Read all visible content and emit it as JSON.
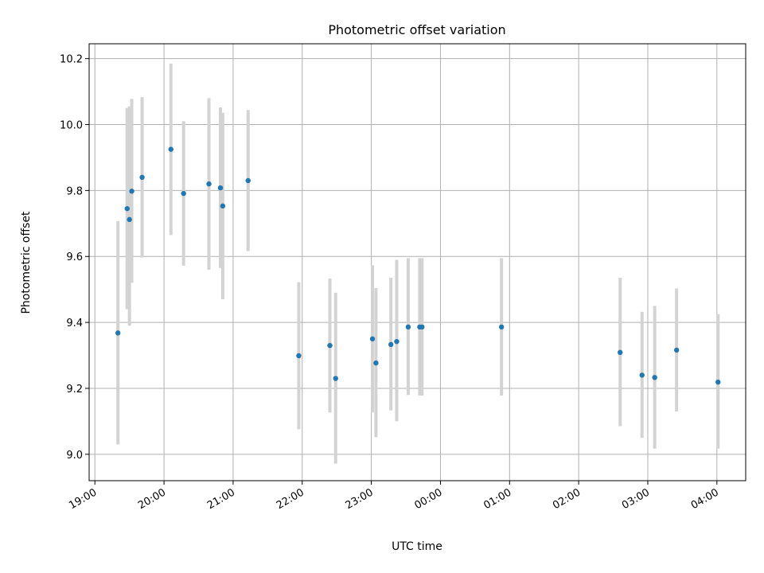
{
  "chart_data": {
    "type": "scatter",
    "title": "Photometric offset variation",
    "xlabel": "UTC time",
    "ylabel": "Photometric offset",
    "x_tick_labels": [
      "19:00",
      "20:00",
      "21:00",
      "22:00",
      "23:00",
      "00:00",
      "01:00",
      "02:00",
      "03:00",
      "04:00"
    ],
    "y_tick_labels": [
      "9.0",
      "9.2",
      "9.4",
      "9.6",
      "9.8",
      "10.0",
      "10.2"
    ],
    "y_ticks": [
      9.0,
      9.2,
      9.4,
      9.6,
      9.8,
      10.0,
      10.2
    ],
    "xlim": [
      "18:55",
      "04:25"
    ],
    "ylim": [
      8.92,
      10.245
    ],
    "grid": true,
    "colors": {
      "points": "#1f77b4",
      "errorbars": "#d3d3d3"
    },
    "points": [
      {
        "x": "19:20",
        "y": 9.368,
        "low": 9.03,
        "high": 9.707
      },
      {
        "x": "19:28",
        "y": 9.745,
        "low": 9.44,
        "high": 10.05
      },
      {
        "x": "19:30",
        "y": 9.712,
        "low": 9.39,
        "high": 10.055
      },
      {
        "x": "19:32",
        "y": 9.798,
        "low": 9.52,
        "high": 10.078
      },
      {
        "x": "19:41",
        "y": 9.84,
        "low": 9.597,
        "high": 10.083
      },
      {
        "x": "20:06",
        "y": 9.925,
        "low": 9.665,
        "high": 10.185
      },
      {
        "x": "20:17",
        "y": 9.791,
        "low": 9.572,
        "high": 10.01
      },
      {
        "x": "20:39",
        "y": 9.82,
        "low": 9.56,
        "high": 10.08
      },
      {
        "x": "20:49",
        "y": 9.808,
        "low": 9.565,
        "high": 10.052
      },
      {
        "x": "20:51",
        "y": 9.753,
        "low": 9.47,
        "high": 10.036
      },
      {
        "x": "21:13",
        "y": 9.83,
        "low": 9.616,
        "high": 10.044
      },
      {
        "x": "21:57",
        "y": 9.299,
        "low": 9.076,
        "high": 9.522
      },
      {
        "x": "22:24",
        "y": 9.33,
        "low": 9.127,
        "high": 9.533
      },
      {
        "x": "22:29",
        "y": 9.23,
        "low": 8.972,
        "high": 9.49
      },
      {
        "x": "23:01",
        "y": 9.35,
        "low": 9.127,
        "high": 9.573
      },
      {
        "x": "23:04",
        "y": 9.277,
        "low": 9.052,
        "high": 9.504
      },
      {
        "x": "23:17",
        "y": 9.333,
        "low": 9.133,
        "high": 9.535
      },
      {
        "x": "23:22",
        "y": 9.342,
        "low": 9.1,
        "high": 9.59
      },
      {
        "x": "23:32",
        "y": 9.386,
        "low": 9.18,
        "high": 9.595
      },
      {
        "x": "23:42",
        "y": 9.386,
        "low": 9.178,
        "high": 9.595
      },
      {
        "x": "23:44",
        "y": 9.386,
        "low": 9.178,
        "high": 9.595
      },
      {
        "x": "00:53",
        "y": 9.386,
        "low": 9.178,
        "high": 9.595
      },
      {
        "x": "02:36",
        "y": 9.309,
        "low": 9.085,
        "high": 9.535
      },
      {
        "x": "02:55",
        "y": 9.24,
        "low": 9.05,
        "high": 9.432
      },
      {
        "x": "03:06",
        "y": 9.233,
        "low": 9.017,
        "high": 9.45
      },
      {
        "x": "03:25",
        "y": 9.316,
        "low": 9.13,
        "high": 9.503
      },
      {
        "x": "04:01",
        "y": 9.219,
        "low": 9.017,
        "high": 9.425
      }
    ]
  }
}
